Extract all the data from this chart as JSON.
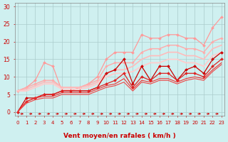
{
  "title": "",
  "xlabel": "Vent moyen/en rafales ( km/h )",
  "bg_color": "#cff0f0",
  "grid_color": "#aacccc",
  "x_ticks": [
    0,
    1,
    2,
    3,
    4,
    5,
    6,
    7,
    8,
    9,
    10,
    11,
    12,
    13,
    14,
    15,
    16,
    17,
    18,
    19,
    20,
    21,
    22,
    23
  ],
  "ylim": [
    -1,
    31
  ],
  "xlim": [
    -0.3,
    23.3
  ],
  "lines_light": [
    {
      "x": [
        0,
        1,
        2,
        3,
        4,
        5,
        6,
        7,
        8,
        9,
        10,
        11,
        12,
        13,
        14,
        15,
        16,
        17,
        18,
        19,
        20,
        21,
        22,
        23
      ],
      "y": [
        6,
        7,
        9,
        14,
        13,
        6,
        6,
        7,
        8,
        10,
        15,
        17,
        17,
        17,
        22,
        21,
        21,
        22,
        22,
        21,
        21,
        19,
        24,
        27
      ],
      "color": "#ff9999",
      "lw": 0.9,
      "marker": "D",
      "ms": 2.0
    },
    {
      "x": [
        0,
        1,
        2,
        3,
        4,
        5,
        6,
        7,
        8,
        9,
        10,
        11,
        12,
        13,
        14,
        15,
        16,
        17,
        18,
        19,
        20,
        21,
        22,
        23
      ],
      "y": [
        6,
        7,
        8,
        9,
        9,
        7,
        7,
        7,
        8,
        9,
        13,
        14,
        14,
        14,
        17,
        18,
        18,
        19,
        19,
        18,
        18,
        17,
        20,
        21
      ],
      "color": "#ffaaaa",
      "lw": 1.0,
      "marker": "D",
      "ms": 1.8
    },
    {
      "x": [
        0,
        1,
        2,
        3,
        4,
        5,
        6,
        7,
        8,
        9,
        10,
        11,
        12,
        13,
        14,
        15,
        16,
        17,
        18,
        19,
        20,
        21,
        22,
        23
      ],
      "y": [
        6,
        6.5,
        7.5,
        8.5,
        8.5,
        7,
        7,
        7,
        7.5,
        8.5,
        11,
        12,
        12,
        13,
        15,
        16,
        16,
        17,
        17,
        16,
        16,
        15,
        18,
        19
      ],
      "color": "#ffbbbb",
      "lw": 1.2,
      "marker": null,
      "ms": 0
    },
    {
      "x": [
        0,
        1,
        2,
        3,
        4,
        5,
        6,
        7,
        8,
        9,
        10,
        11,
        12,
        13,
        14,
        15,
        16,
        17,
        18,
        19,
        20,
        21,
        22,
        23
      ],
      "y": [
        6,
        6,
        7,
        8,
        8,
        6.5,
        6.5,
        6.5,
        7,
        8,
        10,
        11,
        11,
        11.5,
        13,
        14,
        14,
        15,
        15,
        14,
        14,
        13,
        16,
        17
      ],
      "color": "#ffcccc",
      "lw": 1.3,
      "marker": null,
      "ms": 0
    }
  ],
  "lines_dark": [
    {
      "x": [
        0,
        1,
        2,
        3,
        4,
        5,
        6,
        7,
        8,
        9,
        10,
        11,
        12,
        13,
        14,
        15,
        16,
        17,
        18,
        19,
        20,
        21,
        22,
        23
      ],
      "y": [
        0,
        4,
        4,
        5,
        5,
        6,
        6,
        6,
        6,
        7,
        11,
        12,
        15,
        8,
        13,
        9,
        13,
        13,
        9,
        12,
        13,
        11,
        15,
        17
      ],
      "color": "#cc0000",
      "lw": 0.9,
      "marker": "D",
      "ms": 2.0
    },
    {
      "x": [
        0,
        1,
        2,
        3,
        4,
        5,
        6,
        7,
        8,
        9,
        10,
        11,
        12,
        13,
        14,
        15,
        16,
        17,
        18,
        19,
        20,
        21,
        22,
        23
      ],
      "y": [
        0,
        3,
        4,
        5,
        5,
        6,
        6,
        6,
        6,
        7,
        8,
        9,
        11,
        7,
        10,
        9,
        11,
        11,
        9,
        11,
        11,
        10,
        13,
        15
      ],
      "color": "#dd2222",
      "lw": 0.9,
      "marker": "D",
      "ms": 2.0
    },
    {
      "x": [
        0,
        1,
        2,
        3,
        4,
        5,
        6,
        7,
        8,
        9,
        10,
        11,
        12,
        13,
        14,
        15,
        16,
        17,
        18,
        19,
        20,
        21,
        22,
        23
      ],
      "y": [
        0,
        3,
        4,
        4.5,
        4.5,
        5.5,
        5.5,
        5.5,
        5.5,
        6.5,
        7.5,
        8,
        9.5,
        6.5,
        9,
        8.5,
        9.5,
        9.5,
        8.5,
        9.5,
        10,
        9.5,
        12,
        14
      ],
      "color": "#ee3333",
      "lw": 0.8,
      "marker": null,
      "ms": 0
    },
    {
      "x": [
        0,
        1,
        2,
        3,
        4,
        5,
        6,
        7,
        8,
        9,
        10,
        11,
        12,
        13,
        14,
        15,
        16,
        17,
        18,
        19,
        20,
        21,
        22,
        23
      ],
      "y": [
        0,
        2.5,
        3.5,
        4,
        4,
        5,
        5,
        5,
        5,
        6,
        7,
        7.5,
        8.5,
        6,
        8.5,
        8,
        9,
        9,
        8,
        9,
        9.5,
        9,
        11.5,
        13.5
      ],
      "color": "#ee4444",
      "lw": 0.8,
      "marker": null,
      "ms": 0
    }
  ],
  "arrow_color": "#cc0000",
  "xlabel_color": "#cc0000",
  "tick_color": "#cc0000",
  "ytick_labels": [
    "0",
    "5",
    "10",
    "15",
    "20",
    "25",
    "30"
  ],
  "ytick_vals": [
    0,
    5,
    10,
    15,
    20,
    25,
    30
  ],
  "tick_fontsize": 5.5,
  "xlabel_fontsize": 6.5
}
